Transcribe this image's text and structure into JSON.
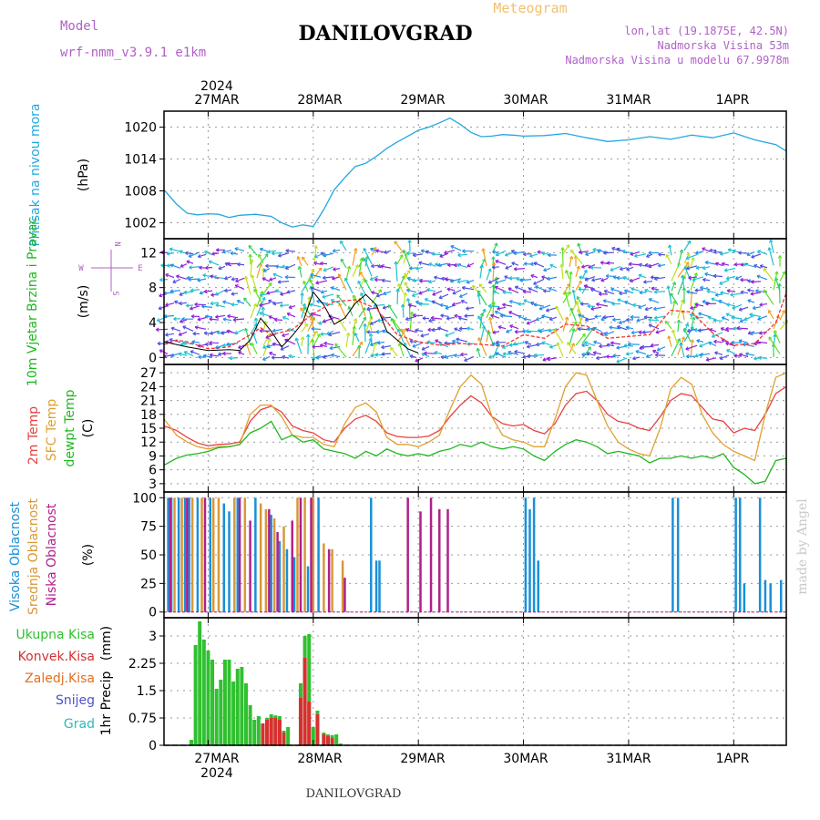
{
  "header": {
    "model_label": "Model",
    "model_name": "wrf-nmm_v3.9.1  e1km",
    "station": "DANILOVGRAD",
    "product": "Meteogram",
    "lonlat": "lon,lat (19.1875E, 42.5N)",
    "elevation": "Nadmorska Visina 53m",
    "model_elevation": "Nadmorska Visina u modelu 67.9978m",
    "footer_station": "DANILOVGRAD",
    "credit": "made by Angel"
  },
  "colors": {
    "pressure": "#22a8e0",
    "t2m": "#e84040",
    "sfc": "#e0a030",
    "dewpt": "#20b820",
    "cloud_high": "#1890d8",
    "cloud_mid": "#d89838",
    "cloud_low": "#b0208c",
    "precip_total": "#30c030",
    "precip_conv": "#d83030",
    "precip_grid": "#d87020",
    "snow": "#5050d0",
    "graupel": "#30b8b8",
    "wind_trace": "#000000",
    "wind_gust": "#ff3030"
  },
  "chart_data": [
    {
      "id": "pressure",
      "type": "line",
      "ylabel": "Pritisak na nivou mora",
      "unit": "(hPa)",
      "ylim": [
        999,
        1023
      ],
      "yticks": [
        1002,
        1008,
        1014,
        1020
      ],
      "x_start_day": 26.58,
      "x_end_day": 32.5,
      "top_axis": {
        "year": "2024",
        "labels": [
          "27MAR",
          "28MAR",
          "29MAR",
          "30MAR",
          "31MAR",
          "1APR"
        ]
      },
      "series": [
        {
          "color_key": "pressure",
          "x": [
            26.58,
            26.7,
            26.8,
            26.9,
            27.0,
            27.1,
            27.2,
            27.3,
            27.45,
            27.6,
            27.7,
            27.8,
            27.9,
            28.0,
            28.1,
            28.2,
            28.3,
            28.4,
            28.5,
            28.6,
            28.7,
            28.8,
            28.9,
            29.0,
            29.1,
            29.2,
            29.3,
            29.4,
            29.5,
            29.6,
            29.7,
            29.8,
            29.9,
            30.0,
            30.2,
            30.4,
            30.6,
            30.8,
            31.0,
            31.2,
            31.4,
            31.6,
            31.8,
            32.0,
            32.2,
            32.4,
            32.5
          ],
          "y": [
            1008.2,
            1005.5,
            1003.8,
            1003.5,
            1003.7,
            1003.6,
            1003.0,
            1003.4,
            1003.6,
            1003.2,
            1002.0,
            1001.2,
            1001.6,
            1001.3,
            1004.5,
            1008.2,
            1010.5,
            1012.6,
            1013.2,
            1014.5,
            1016.0,
            1017.2,
            1018.3,
            1019.4,
            1020.0,
            1020.8,
            1021.7,
            1020.5,
            1019.0,
            1018.2,
            1018.3,
            1018.6,
            1018.5,
            1018.3,
            1018.4,
            1018.8,
            1018.0,
            1017.3,
            1017.6,
            1018.2,
            1017.7,
            1018.5,
            1018.0,
            1018.9,
            1017.6,
            1016.7,
            1015.5
          ]
        }
      ]
    },
    {
      "id": "wind",
      "type": "line",
      "ylabel": "10m Vjetar Brzina i Pravac",
      "unit": "(m/s)",
      "ylim": [
        -0.8,
        13.6
      ],
      "yticks": [
        0,
        4,
        8,
        12
      ],
      "compass": {
        "n": "N",
        "w": "W",
        "e": "E",
        "s": "S"
      },
      "x_start_day": 26.58,
      "x_end_day": 32.5,
      "series": [
        {
          "name": "mean",
          "color_key": "wind_trace",
          "x": [
            26.58,
            26.8,
            27.0,
            27.2,
            27.3,
            27.4,
            27.5,
            27.6,
            27.7,
            27.8,
            27.9,
            28.0,
            28.1,
            28.2,
            28.3,
            28.4,
            28.5,
            28.6,
            28.7,
            28.8,
            28.9,
            29.0
          ],
          "y": [
            1.8,
            1.2,
            0.8,
            0.9,
            0.8,
            2.0,
            4.5,
            3.0,
            1.2,
            2.5,
            4.0,
            7.5,
            6.0,
            3.8,
            4.5,
            6.2,
            7.2,
            6.0,
            3.0,
            2.0,
            1.0,
            0.5
          ]
        },
        {
          "name": "gust",
          "color_key": "wind_gust",
          "x": [
            26.58,
            26.7,
            26.8,
            27.0,
            27.2,
            27.4,
            27.5,
            27.6,
            27.8,
            28.0,
            28.2,
            28.4,
            28.6,
            28.8,
            29.0,
            29.2,
            29.4,
            29.6,
            29.8,
            30.0,
            30.2,
            30.4,
            30.6,
            30.8,
            31.0,
            31.2,
            31.4,
            31.6,
            31.8,
            32.0,
            32.2,
            32.4,
            32.5
          ],
          "y": [
            1.5,
            2.0,
            1.8,
            1.0,
            1.2,
            2.6,
            3.4,
            2.6,
            3.2,
            5.0,
            6.4,
            6.6,
            5.6,
            2.6,
            1.8,
            1.4,
            1.6,
            1.5,
            1.3,
            2.6,
            2.2,
            3.8,
            3.6,
            2.2,
            2.4,
            2.6,
            5.4,
            5.2,
            2.8,
            1.4,
            1.6,
            4.0,
            7.4
          ]
        }
      ]
    },
    {
      "id": "temperature",
      "type": "line",
      "ylabels": [
        "2m Temp",
        "SFC Temp",
        "dewpt Temp"
      ],
      "unit": "(C)",
      "ylim": [
        1.2,
        28.8
      ],
      "yticks": [
        3,
        6,
        9,
        12,
        15,
        18,
        21,
        24,
        27
      ],
      "x_start_day": 26.58,
      "x_end_day": 32.5,
      "series": [
        {
          "name": "2m Temp",
          "color_key": "t2m",
          "x": [
            26.58,
            26.7,
            26.8,
            26.9,
            27.0,
            27.1,
            27.2,
            27.3,
            27.4,
            27.5,
            27.6,
            27.7,
            27.8,
            27.9,
            28.0,
            28.1,
            28.2,
            28.3,
            28.4,
            28.5,
            28.6,
            28.7,
            28.8,
            28.9,
            29.0,
            29.1,
            29.2,
            29.3,
            29.4,
            29.5,
            29.6,
            29.7,
            29.8,
            29.9,
            30.0,
            30.1,
            30.2,
            30.3,
            30.4,
            30.5,
            30.6,
            30.7,
            30.8,
            30.9,
            31.0,
            31.1,
            31.2,
            31.3,
            31.4,
            31.5,
            31.6,
            31.7,
            31.8,
            31.9,
            32.0,
            32.1,
            32.2,
            32.3,
            32.4,
            32.5
          ],
          "y": [
            15.5,
            14.5,
            13.0,
            11.8,
            11.2,
            11.5,
            11.6,
            12.0,
            16.5,
            19.0,
            19.8,
            18.5,
            15.5,
            14.5,
            14.0,
            12.5,
            12.0,
            15.0,
            17.0,
            17.8,
            16.5,
            14.0,
            13.2,
            13.0,
            13.0,
            13.3,
            14.5,
            17.5,
            20.0,
            22.0,
            20.5,
            17.5,
            16.0,
            15.5,
            15.8,
            14.5,
            13.8,
            16.0,
            20.0,
            22.5,
            23.0,
            21.0,
            18.0,
            16.5,
            16.0,
            15.0,
            14.5,
            17.5,
            21.0,
            22.5,
            22.0,
            19.5,
            17.0,
            16.5,
            14.0,
            15.0,
            14.5,
            18.0,
            22.5,
            24.0
          ]
        },
        {
          "name": "SFC Temp",
          "color_key": "sfc",
          "x": [
            26.58,
            26.7,
            26.8,
            26.9,
            27.0,
            27.1,
            27.2,
            27.3,
            27.4,
            27.5,
            27.6,
            27.7,
            27.8,
            27.9,
            28.0,
            28.1,
            28.2,
            28.3,
            28.4,
            28.5,
            28.6,
            28.7,
            28.8,
            28.9,
            29.0,
            29.1,
            29.2,
            29.3,
            29.4,
            29.5,
            29.6,
            29.7,
            29.8,
            29.9,
            30.0,
            30.1,
            30.2,
            30.3,
            30.4,
            30.5,
            30.6,
            30.7,
            30.8,
            30.9,
            31.0,
            31.1,
            31.2,
            31.3,
            31.4,
            31.5,
            31.6,
            31.7,
            31.8,
            31.9,
            32.0,
            32.1,
            32.2,
            32.3,
            32.4,
            32.5
          ],
          "y": [
            17.0,
            13.5,
            12.0,
            11.0,
            10.5,
            11.0,
            11.0,
            11.5,
            18.0,
            20.0,
            20.0,
            17.5,
            13.5,
            13.0,
            13.0,
            11.5,
            11.0,
            16.0,
            19.5,
            20.5,
            18.5,
            13.0,
            11.5,
            11.5,
            11.0,
            12.0,
            13.5,
            19.0,
            24.0,
            26.5,
            24.5,
            17.5,
            13.5,
            12.5,
            12.0,
            11.0,
            11.0,
            17.0,
            24.0,
            27.0,
            26.5,
            21.0,
            15.5,
            12.0,
            10.5,
            9.5,
            9.0,
            15.0,
            23.5,
            26.0,
            24.5,
            18.0,
            14.0,
            11.5,
            10.0,
            9.0,
            8.0,
            18.0,
            26.0,
            27.0
          ]
        },
        {
          "name": "dewpt Temp",
          "color_key": "dewpt",
          "x": [
            26.58,
            26.7,
            26.8,
            26.9,
            27.0,
            27.1,
            27.2,
            27.3,
            27.4,
            27.5,
            27.6,
            27.7,
            27.8,
            27.9,
            28.0,
            28.1,
            28.2,
            28.3,
            28.4,
            28.5,
            28.6,
            28.7,
            28.8,
            28.9,
            29.0,
            29.1,
            29.2,
            29.3,
            29.4,
            29.5,
            29.6,
            29.7,
            29.8,
            29.9,
            30.0,
            30.1,
            30.2,
            30.3,
            30.4,
            30.5,
            30.6,
            30.7,
            30.8,
            30.9,
            31.0,
            31.1,
            31.2,
            31.3,
            31.4,
            31.5,
            31.6,
            31.7,
            31.8,
            31.9,
            32.0,
            32.1,
            32.2,
            32.3,
            32.4,
            32.5
          ],
          "y": [
            7.0,
            8.5,
            9.2,
            9.5,
            10.0,
            10.8,
            11.0,
            11.5,
            14.0,
            15.0,
            16.5,
            12.5,
            13.5,
            12.0,
            12.5,
            10.5,
            10.0,
            9.5,
            8.5,
            10.0,
            9.0,
            10.5,
            9.5,
            9.0,
            9.5,
            9.0,
            10.0,
            10.5,
            11.5,
            11.0,
            12.0,
            11.0,
            10.5,
            11.0,
            10.5,
            9.0,
            8.0,
            10.0,
            11.5,
            12.5,
            12.0,
            11.0,
            9.5,
            10.0,
            9.5,
            9.0,
            7.5,
            8.5,
            8.5,
            9.0,
            8.5,
            9.0,
            8.5,
            9.5,
            6.5,
            5.0,
            3.0,
            3.5,
            8.0,
            8.5
          ]
        }
      ]
    },
    {
      "id": "cloud",
      "type": "bar",
      "ylabels": [
        "Visoka Oblacnost",
        "Srednja Oblacnost",
        "Niska Oblacnost"
      ],
      "unit": "(%)",
      "ylim": [
        -5,
        105
      ],
      "yticks": [
        0,
        25,
        50,
        75,
        100
      ],
      "x_start_day": 26.58,
      "x_end_day": 32.5,
      "series": [
        {
          "name": "Visoka Oblacnost",
          "color_key": "cloud_high",
          "x": [
            26.62,
            26.65,
            26.72,
            26.78,
            26.82,
            26.9,
            27.02,
            27.15,
            27.2,
            27.28,
            27.45,
            27.6,
            27.68,
            27.75,
            27.82,
            27.95,
            28.05,
            28.55,
            28.6,
            28.63,
            30.02,
            30.06,
            30.1,
            30.14,
            31.42,
            31.47,
            32.02,
            32.06,
            32.1,
            32.25,
            32.3,
            32.35,
            32.45
          ],
          "y": [
            100,
            100,
            100,
            100,
            100,
            100,
            100,
            95,
            88,
            100,
            100,
            85,
            62,
            55,
            48,
            40,
            100,
            100,
            45,
            45,
            100,
            90,
            100,
            45,
            100,
            100,
            100,
            100,
            25,
            100,
            28,
            25,
            28
          ]
        },
        {
          "name": "Srednja Oblacnost",
          "color_key": "cloud_mid",
          "x": [
            26.68,
            26.75,
            26.85,
            26.94,
            27.05,
            27.1,
            27.25,
            27.35,
            27.5,
            27.55,
            27.63,
            27.72,
            27.85,
            27.92,
            28.0,
            28.1,
            28.18,
            28.28
          ],
          "y": [
            100,
            100,
            100,
            100,
            100,
            100,
            100,
            100,
            95,
            90,
            82,
            75,
            100,
            100,
            100,
            60,
            55,
            45
          ]
        },
        {
          "name": "Niska Oblacnost",
          "color_key": "cloud_low",
          "x": [
            26.64,
            26.8,
            26.97,
            27.3,
            27.4,
            27.58,
            27.66,
            27.8,
            27.88,
            27.98,
            28.15,
            28.3,
            28.45,
            28.9,
            29.02,
            29.12,
            29.2,
            29.28
          ],
          "y": [
            100,
            100,
            100,
            100,
            80,
            90,
            70,
            80,
            100,
            100,
            55,
            30,
            0,
            100,
            88,
            100,
            90,
            90
          ]
        }
      ]
    },
    {
      "id": "precip",
      "type": "bar",
      "ylabel": "1hr Precip",
      "unit": "(mm)",
      "ylim": [
        0,
        3.5
      ],
      "yticks": [
        0,
        0.75,
        1.5,
        2.25,
        3
      ],
      "ytick_labels": [
        "0",
        "0.75",
        "1.5",
        "2.25",
        "3"
      ],
      "x_start_day": 26.58,
      "x_end_day": 32.5,
      "bottom_axis": {
        "year": "2024",
        "labels": [
          "27MAR",
          "28MAR",
          "29MAR",
          "30MAR",
          "31MAR",
          "1APR"
        ]
      },
      "legend": [
        "Ukupna Kisa",
        "Konvek.Kisa",
        "Zaledj.Kisa",
        "Snijeg",
        "Grad"
      ],
      "series": [
        {
          "name": "Ukupna Kisa",
          "color_key": "precip_total",
          "x": [
            26.84,
            26.88,
            26.92,
            26.96,
            27.0,
            27.04,
            27.08,
            27.12,
            27.16,
            27.2,
            27.24,
            27.28,
            27.32,
            27.36,
            27.4,
            27.44,
            27.48,
            27.52,
            27.56,
            27.6,
            27.64,
            27.68,
            27.72,
            27.76,
            27.88,
            27.92,
            27.96,
            28.0,
            28.04,
            28.1,
            28.14,
            28.18,
            28.22,
            28.26
          ],
          "y": [
            0.15,
            2.75,
            3.4,
            2.9,
            2.6,
            2.35,
            1.55,
            1.8,
            2.35,
            2.35,
            1.75,
            2.1,
            2.15,
            1.7,
            1.1,
            0.7,
            0.8,
            0.45,
            0.75,
            0.85,
            0.82,
            0.8,
            0.4,
            0.5,
            1.7,
            3.0,
            3.05,
            0.5,
            0.95,
            0.35,
            0.3,
            0.28,
            0.3,
            0.05
          ]
        },
        {
          "name": "Konvek.Kisa",
          "color_key": "precip_conv",
          "x": [
            27.52,
            27.56,
            27.6,
            27.64,
            27.68,
            27.72,
            27.88,
            27.92,
            27.96,
            28.04,
            28.1,
            28.14,
            28.18
          ],
          "y": [
            0.6,
            0.7,
            0.75,
            0.75,
            0.7,
            0.35,
            1.3,
            2.4,
            1.2,
            0.85,
            0.3,
            0.25,
            0.2
          ]
        }
      ]
    }
  ]
}
